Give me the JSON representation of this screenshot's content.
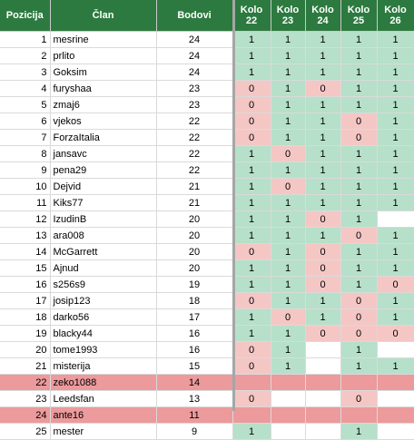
{
  "headers": {
    "pos": "Pozicija",
    "name": "Član",
    "pts": "Bodovi",
    "rounds": [
      {
        "line1": "Kolo",
        "line2": "22"
      },
      {
        "line1": "Kolo",
        "line2": "23"
      },
      {
        "line1": "Kolo",
        "line2": "24"
      },
      {
        "line1": "Kolo",
        "line2": "25"
      },
      {
        "line1": "Kolo",
        "line2": "26"
      }
    ]
  },
  "colors": {
    "header_bg": "#2d7a40",
    "win": "#b6e0c9",
    "loss": "#f4c7c5",
    "highlight": "#ec9a9c"
  },
  "rows": [
    {
      "pos": "1",
      "name": "mesrine",
      "pts": "24",
      "highlight": false,
      "k": [
        "1",
        "1",
        "1",
        "1",
        "1"
      ]
    },
    {
      "pos": "2",
      "name": "prlito",
      "pts": "24",
      "highlight": false,
      "k": [
        "1",
        "1",
        "1",
        "1",
        "1"
      ]
    },
    {
      "pos": "3",
      "name": "Goksim",
      "pts": "24",
      "highlight": false,
      "k": [
        "1",
        "1",
        "1",
        "1",
        "1"
      ]
    },
    {
      "pos": "4",
      "name": "furyshaa",
      "pts": "23",
      "highlight": false,
      "k": [
        "0",
        "1",
        "0",
        "1",
        "1"
      ]
    },
    {
      "pos": "5",
      "name": "zmaj6",
      "pts": "23",
      "highlight": false,
      "k": [
        "0",
        "1",
        "1",
        "1",
        "1"
      ]
    },
    {
      "pos": "6",
      "name": "vjekos",
      "pts": "22",
      "highlight": false,
      "k": [
        "0",
        "1",
        "1",
        "0",
        "1"
      ]
    },
    {
      "pos": "7",
      "name": "ForzaItalia",
      "pts": "22",
      "highlight": false,
      "k": [
        "0",
        "1",
        "1",
        "0",
        "1"
      ]
    },
    {
      "pos": "8",
      "name": "jansavc",
      "pts": "22",
      "highlight": false,
      "k": [
        "1",
        "0",
        "1",
        "1",
        "1"
      ]
    },
    {
      "pos": "9",
      "name": "pena29",
      "pts": "22",
      "highlight": false,
      "k": [
        "1",
        "1",
        "1",
        "1",
        "1"
      ]
    },
    {
      "pos": "10",
      "name": "Dejvid",
      "pts": "21",
      "highlight": false,
      "k": [
        "1",
        "0",
        "1",
        "1",
        "1"
      ]
    },
    {
      "pos": "11",
      "name": "Kiks77",
      "pts": "21",
      "highlight": false,
      "k": [
        "1",
        "1",
        "1",
        "1",
        "1"
      ]
    },
    {
      "pos": "12",
      "name": "IzudinB",
      "pts": "20",
      "highlight": false,
      "k": [
        "1",
        "1",
        "0",
        "1",
        ""
      ]
    },
    {
      "pos": "13",
      "name": "ara008",
      "pts": "20",
      "highlight": false,
      "k": [
        "1",
        "1",
        "1",
        "0",
        "1"
      ]
    },
    {
      "pos": "14",
      "name": "McGarrett",
      "pts": "20",
      "highlight": false,
      "k": [
        "0",
        "1",
        "0",
        "1",
        "1"
      ]
    },
    {
      "pos": "15",
      "name": "Ajnud",
      "pts": "20",
      "highlight": false,
      "k": [
        "1",
        "1",
        "0",
        "1",
        "1"
      ]
    },
    {
      "pos": "16",
      "name": "s256s9",
      "pts": "19",
      "highlight": false,
      "k": [
        "1",
        "1",
        "0",
        "1",
        "0"
      ]
    },
    {
      "pos": "17",
      "name": "josip123",
      "pts": "18",
      "highlight": false,
      "k": [
        "0",
        "1",
        "1",
        "0",
        "1"
      ]
    },
    {
      "pos": "18",
      "name": "darko56",
      "pts": "17",
      "highlight": false,
      "k": [
        "1",
        "0",
        "1",
        "0",
        "1"
      ]
    },
    {
      "pos": "19",
      "name": "blacky44",
      "pts": "16",
      "highlight": false,
      "k": [
        "1",
        "1",
        "0",
        "0",
        "0"
      ]
    },
    {
      "pos": "20",
      "name": "tome1993",
      "pts": "16",
      "highlight": false,
      "k": [
        "0",
        "1",
        "",
        "1",
        ""
      ]
    },
    {
      "pos": "21",
      "name": "misterija",
      "pts": "15",
      "highlight": false,
      "k": [
        "0",
        "1",
        "",
        "1",
        "1"
      ]
    },
    {
      "pos": "22",
      "name": "zeko1088",
      "pts": "14",
      "highlight": true,
      "k": [
        "",
        "",
        "",
        "",
        ""
      ]
    },
    {
      "pos": "23",
      "name": "Leedsfan",
      "pts": "13",
      "highlight": false,
      "k": [
        "0",
        "",
        "",
        "0",
        ""
      ]
    },
    {
      "pos": "24",
      "name": "ante16",
      "pts": "11",
      "highlight": true,
      "k": [
        "",
        "",
        "",
        "",
        ""
      ]
    },
    {
      "pos": "25",
      "name": "mester",
      "pts": "9",
      "highlight": false,
      "k": [
        "1",
        "",
        "",
        "1",
        ""
      ]
    }
  ]
}
